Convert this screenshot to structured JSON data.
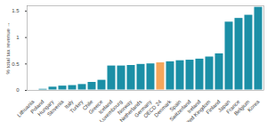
{
  "chart_data": {
    "type": "bar",
    "y_label": "% total tax revenue",
    "categories": [
      "Lithuania",
      "Poland",
      "Hungary",
      "Slovenia",
      "Italy",
      "Turkey",
      "Chile",
      "Greece",
      "Iceland",
      "Luxembourg",
      "Norway",
      "Netherlands",
      "Germany",
      "OECD 24",
      "Denmark",
      "Spain",
      "Switzerland",
      "Ireland",
      "United Kingdom",
      "Finland",
      "Japan",
      "France",
      "Belgium",
      "Korea"
    ],
    "values": [
      0.01,
      0.03,
      0.07,
      0.09,
      0.1,
      0.12,
      0.16,
      0.2,
      0.47,
      0.47,
      0.48,
      0.5,
      0.51,
      0.53,
      0.55,
      0.57,
      0.58,
      0.6,
      0.64,
      0.7,
      1.3,
      1.37,
      1.43,
      1.58
    ],
    "colors": [
      "#1b8fa6",
      "#1b8fa6",
      "#1b8fa6",
      "#1b8fa6",
      "#1b8fa6",
      "#1b8fa6",
      "#1b8fa6",
      "#1b8fa6",
      "#1b8fa6",
      "#1b8fa6",
      "#1b8fa6",
      "#1b8fa6",
      "#1b8fa6",
      "#f5a65b",
      "#1b8fa6",
      "#1b8fa6",
      "#1b8fa6",
      "#1b8fa6",
      "#1b8fa6",
      "#1b8fa6",
      "#1b8fa6",
      "#1b8fa6",
      "#1b8fa6",
      "#1b8fa6"
    ],
    "ylim": [
      0,
      1.6
    ],
    "yticks": [
      0,
      0.5,
      1,
      1.5
    ],
    "grid": false
  }
}
